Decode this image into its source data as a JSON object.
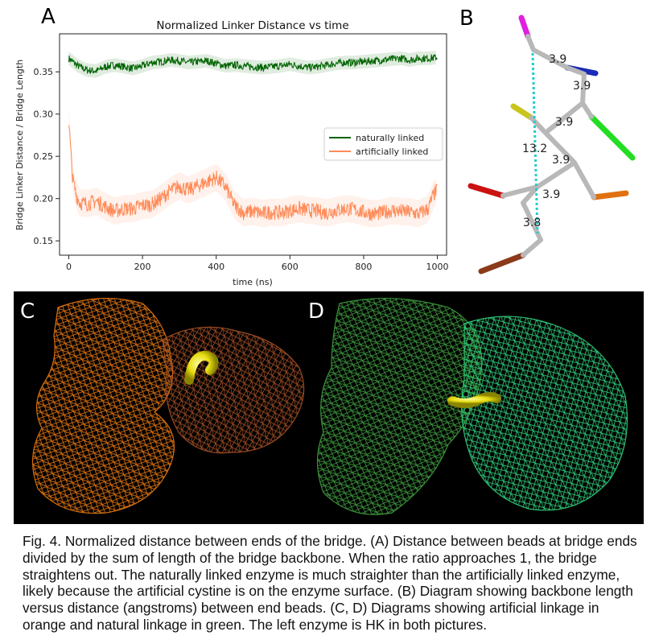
{
  "figure": {
    "panel_labels": {
      "a": "A",
      "b": "B",
      "c": "C",
      "d": "D"
    },
    "caption": "Fig. 4. Normalized distance between ends of the bridge. (A) Distance between beads at bridge ends divided by the sum of length of the bridge backbone. When the ratio approaches 1, the bridge straightens out. The naturally linked enzyme is much straighter than the artificially linked enzyme, likely because the artificial cystine is on the enzyme surface. (B) Diagram showing backbone length versus distance (angstroms) between end beads. (C, D) Diagrams showing artificial linkage in orange and natural linkage in green. The left enzyme is HK in both pictures."
  },
  "chart_data": {
    "type": "line",
    "title": "Normalized Linker Distance vs time",
    "xlabel": "time (ns)",
    "ylabel": "Bridge Linker Distance / Bridge Length",
    "xlim": [
      -25,
      1025
    ],
    "ylim": [
      0.133,
      0.395
    ],
    "xticks": [
      0,
      200,
      400,
      600,
      800,
      1000
    ],
    "yticks": [
      0.15,
      0.2,
      0.25,
      0.3,
      0.35
    ],
    "ytick_labels": [
      "0.15",
      "0.20",
      "0.25",
      "0.30",
      "0.35"
    ],
    "grid": false,
    "legend_position": "center-right",
    "series": [
      {
        "name": "naturally linked",
        "color": "#006400",
        "x": [
          0,
          25,
          50,
          75,
          100,
          125,
          150,
          175,
          200,
          225,
          250,
          275,
          300,
          325,
          350,
          375,
          400,
          425,
          450,
          475,
          500,
          525,
          550,
          575,
          600,
          625,
          650,
          675,
          700,
          725,
          750,
          775,
          800,
          825,
          850,
          875,
          900,
          925,
          950,
          975,
          1000
        ],
        "y": [
          0.366,
          0.357,
          0.352,
          0.351,
          0.356,
          0.358,
          0.356,
          0.354,
          0.357,
          0.361,
          0.362,
          0.364,
          0.363,
          0.361,
          0.362,
          0.363,
          0.36,
          0.357,
          0.358,
          0.357,
          0.356,
          0.355,
          0.356,
          0.357,
          0.359,
          0.357,
          0.355,
          0.356,
          0.358,
          0.36,
          0.361,
          0.361,
          0.362,
          0.363,
          0.364,
          0.365,
          0.366,
          0.364,
          0.366,
          0.366,
          0.367
        ]
      },
      {
        "name": "artificially linked",
        "color": "#ff8c5a",
        "x": [
          0,
          10,
          20,
          30,
          50,
          75,
          100,
          125,
          150,
          175,
          200,
          225,
          250,
          275,
          300,
          325,
          350,
          375,
          400,
          425,
          450,
          475,
          500,
          525,
          550,
          575,
          600,
          625,
          650,
          675,
          700,
          725,
          750,
          775,
          800,
          825,
          850,
          875,
          900,
          925,
          950,
          975,
          990,
          1000
        ],
        "y": [
          0.293,
          0.225,
          0.205,
          0.195,
          0.194,
          0.197,
          0.19,
          0.185,
          0.188,
          0.188,
          0.192,
          0.193,
          0.2,
          0.209,
          0.215,
          0.21,
          0.215,
          0.22,
          0.225,
          0.214,
          0.192,
          0.183,
          0.185,
          0.182,
          0.184,
          0.183,
          0.186,
          0.188,
          0.186,
          0.185,
          0.183,
          0.186,
          0.188,
          0.187,
          0.184,
          0.182,
          0.183,
          0.186,
          0.185,
          0.184,
          0.182,
          0.188,
          0.205,
          0.21
        ]
      }
    ]
  },
  "bridge_diagram": {
    "bond_labels": [
      "3.9",
      "3.9",
      "3.9",
      "13.2",
      "3.9",
      "3.9",
      "3.8"
    ],
    "colors": {
      "backbone": "#b0b0b0",
      "magenta": "#e020e0",
      "blue": "#1a2bb8",
      "yellow": "#c9c51a",
      "green": "#22dd22",
      "red": "#cc1111",
      "orange": "#e07010",
      "brown": "#8b3a1a",
      "dashed": "#22cccc"
    }
  },
  "renders": {
    "colors": {
      "artificial_left": "#e07410",
      "artificial_right": "#9a4a22",
      "natural_left": "#3e9a3e",
      "natural_right": "#2fcc7a",
      "linker": "#e6dd10"
    }
  }
}
